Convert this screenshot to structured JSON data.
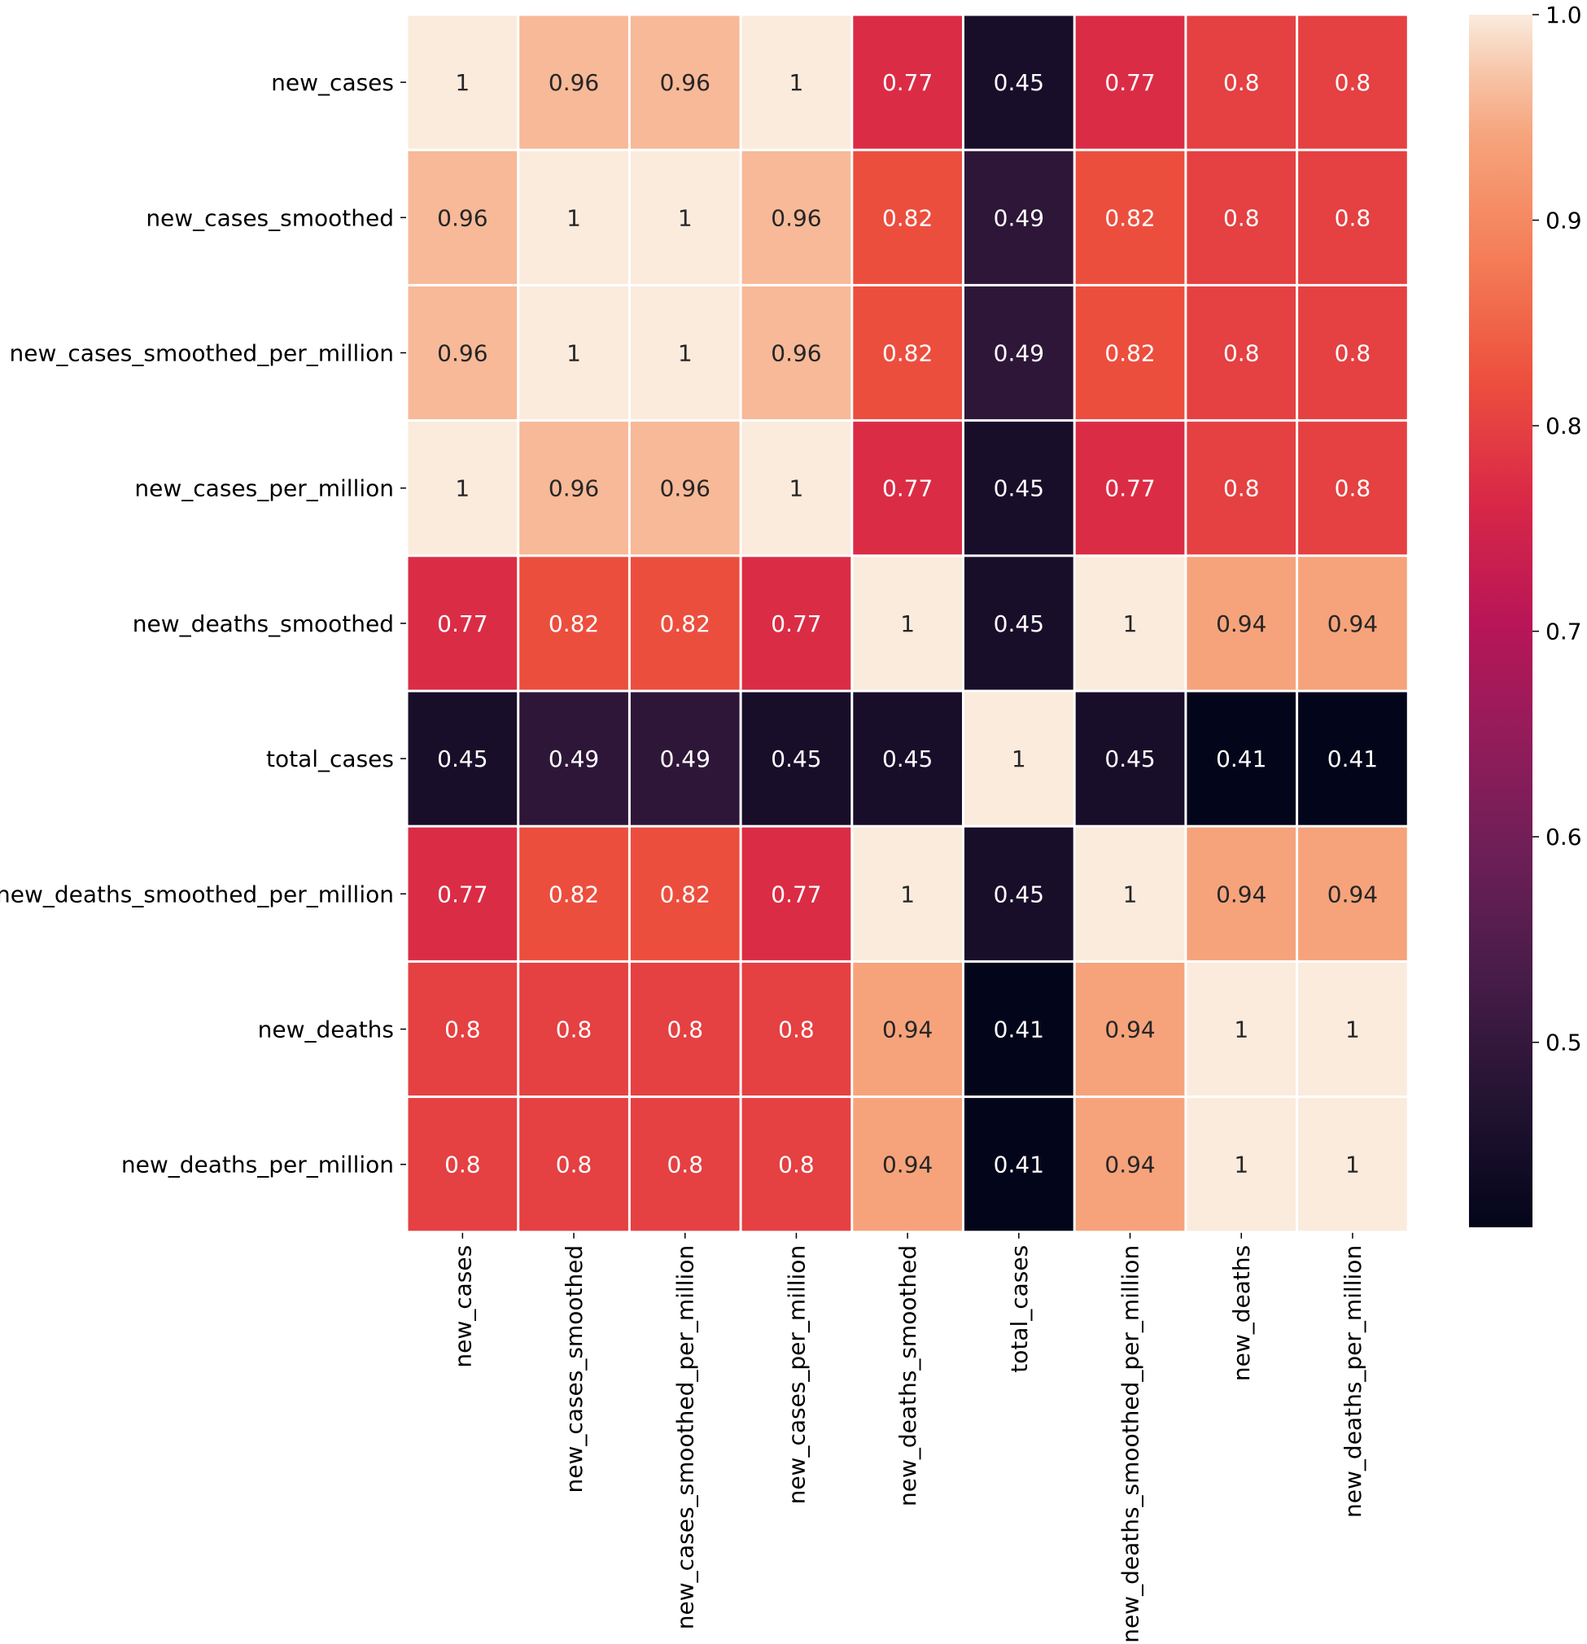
{
  "chart_data": {
    "type": "heatmap",
    "title": "",
    "xlabel": "",
    "ylabel": "",
    "rows": [
      "new_cases",
      "new_cases_smoothed",
      "new_cases_smoothed_per_million",
      "new_cases_per_million",
      "new_deaths_smoothed",
      "total_cases",
      "new_deaths_smoothed_per_million",
      "new_deaths",
      "new_deaths_per_million"
    ],
    "columns": [
      "new_cases",
      "new_cases_smoothed",
      "new_cases_smoothed_per_million",
      "new_cases_per_million",
      "new_deaths_smoothed",
      "total_cases",
      "new_deaths_smoothed_per_million",
      "new_deaths",
      "new_deaths_per_million"
    ],
    "values": [
      [
        1,
        0.96,
        0.96,
        1,
        0.77,
        0.45,
        0.77,
        0.8,
        0.8
      ],
      [
        0.96,
        1,
        1,
        0.96,
        0.82,
        0.49,
        0.82,
        0.8,
        0.8
      ],
      [
        0.96,
        1,
        1,
        0.96,
        0.82,
        0.49,
        0.82,
        0.8,
        0.8
      ],
      [
        1,
        0.96,
        0.96,
        1,
        0.77,
        0.45,
        0.77,
        0.8,
        0.8
      ],
      [
        0.77,
        0.82,
        0.82,
        0.77,
        1,
        0.45,
        1,
        0.94,
        0.94
      ],
      [
        0.45,
        0.49,
        0.49,
        0.45,
        0.45,
        1,
        0.45,
        0.41,
        0.41
      ],
      [
        0.77,
        0.82,
        0.82,
        0.77,
        1,
        0.45,
        1,
        0.94,
        0.94
      ],
      [
        0.8,
        0.8,
        0.8,
        0.8,
        0.94,
        0.41,
        0.94,
        1,
        1
      ],
      [
        0.8,
        0.8,
        0.8,
        0.8,
        0.94,
        0.41,
        0.94,
        1,
        1
      ]
    ],
    "cell_labels": [
      [
        "1",
        "0.96",
        "0.96",
        "1",
        "0.77",
        "0.45",
        "0.77",
        "0.8",
        "0.8"
      ],
      [
        "0.96",
        "1",
        "1",
        "0.96",
        "0.82",
        "0.49",
        "0.82",
        "0.8",
        "0.8"
      ],
      [
        "0.96",
        "1",
        "1",
        "0.96",
        "0.82",
        "0.49",
        "0.82",
        "0.8",
        "0.8"
      ],
      [
        "1",
        "0.96",
        "0.96",
        "1",
        "0.77",
        "0.45",
        "0.77",
        "0.8",
        "0.8"
      ],
      [
        "0.77",
        "0.82",
        "0.82",
        "0.77",
        "1",
        "0.45",
        "1",
        "0.94",
        "0.94"
      ],
      [
        "0.45",
        "0.49",
        "0.49",
        "0.45",
        "0.45",
        "1",
        "0.45",
        "0.41",
        "0.41"
      ],
      [
        "0.77",
        "0.82",
        "0.82",
        "0.77",
        "1",
        "0.45",
        "1",
        "0.94",
        "0.94"
      ],
      [
        "0.8",
        "0.8",
        "0.8",
        "0.8",
        "0.94",
        "0.41",
        "0.94",
        "1",
        "1"
      ],
      [
        "0.8",
        "0.8",
        "0.8",
        "0.8",
        "0.94",
        "0.41",
        "0.94",
        "1",
        "1"
      ]
    ],
    "colorbar": {
      "vmin": 0.41,
      "vmax": 1.0,
      "ticks": [
        0.5,
        0.6,
        0.7,
        0.8,
        0.9,
        1.0
      ],
      "tick_labels": [
        "0.5",
        "0.6",
        "0.7",
        "0.8",
        "0.9",
        "1.0"
      ],
      "colormap": "rocket"
    },
    "colormap_stops": [
      {
        "v": 0.0,
        "color": "#03051a"
      },
      {
        "v": 0.1,
        "color": "#221331"
      },
      {
        "v": 0.2,
        "color": "#451c47"
      },
      {
        "v": 0.3,
        "color": "#6a1f56"
      },
      {
        "v": 0.4,
        "color": "#921c5b"
      },
      {
        "v": 0.5,
        "color": "#b91657"
      },
      {
        "v": 0.6,
        "color": "#d92847"
      },
      {
        "v": 0.7,
        "color": "#ed503e"
      },
      {
        "v": 0.8,
        "color": "#f47d57"
      },
      {
        "v": 0.9,
        "color": "#f6a47c"
      },
      {
        "v": 0.95,
        "color": "#f7c4a7"
      },
      {
        "v": 1.0,
        "color": "#faebdd"
      }
    ],
    "grid_line_color": "#ffffff",
    "light_text_color": "#ffffff",
    "dark_text_color": "#262626"
  }
}
